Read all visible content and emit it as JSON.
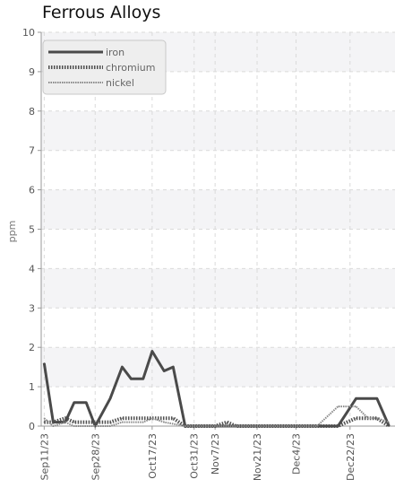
{
  "chart_data": {
    "type": "line",
    "title": "Ferrous Alloys",
    "xlabel": "",
    "ylabel": "ppm",
    "ylim": [
      0,
      10
    ],
    "yticks": [
      "0",
      "1",
      "2",
      "3",
      "4",
      "5",
      "6",
      "7",
      "8",
      "9",
      "10"
    ],
    "xlim": [
      "2023-09-10",
      "2024-01-06"
    ],
    "x_tick_labels": [
      "Sep11/23",
      "Sep28/23",
      "Oct17/23",
      "Oct31/23",
      "Nov7/23",
      "Nov21/23",
      "Dec4/23",
      "Dec22/23"
    ],
    "x_tick_dates": [
      "2023-09-11",
      "2023-09-28",
      "2023-10-17",
      "2023-10-31",
      "2023-11-07",
      "2023-11-21",
      "2023-12-04",
      "2023-12-22"
    ],
    "grid": true,
    "legend_position": "top-left",
    "series": [
      {
        "name": "iron",
        "color": "#4a4a4a",
        "style": "solid",
        "points": [
          [
            "2023-09-11",
            1.6
          ],
          [
            "2023-09-14",
            0.1
          ],
          [
            "2023-09-18",
            0.1
          ],
          [
            "2023-09-21",
            0.6
          ],
          [
            "2023-09-25",
            0.6
          ],
          [
            "2023-09-28",
            0.0
          ],
          [
            "2023-10-03",
            0.7
          ],
          [
            "2023-10-07",
            1.5
          ],
          [
            "2023-10-10",
            1.2
          ],
          [
            "2023-10-14",
            1.2
          ],
          [
            "2023-10-17",
            1.9
          ],
          [
            "2023-10-21",
            1.4
          ],
          [
            "2023-10-24",
            1.5
          ],
          [
            "2023-10-28",
            0.0
          ],
          [
            "2023-11-21",
            0.0
          ],
          [
            "2023-12-18",
            0.0
          ],
          [
            "2023-12-24",
            0.7
          ],
          [
            "2023-12-31",
            0.7
          ],
          [
            "2024-01-04",
            0.0
          ]
        ]
      },
      {
        "name": "chromium",
        "color": "#505050",
        "style": "dotted",
        "points": [
          [
            "2023-09-11",
            0.1
          ],
          [
            "2023-09-14",
            0.1
          ],
          [
            "2023-09-18",
            0.2
          ],
          [
            "2023-09-21",
            0.1
          ],
          [
            "2023-09-28",
            0.1
          ],
          [
            "2023-10-03",
            0.1
          ],
          [
            "2023-10-07",
            0.2
          ],
          [
            "2023-10-24",
            0.2
          ],
          [
            "2023-10-28",
            0.0
          ],
          [
            "2023-11-07",
            0.0
          ],
          [
            "2023-11-11",
            0.1
          ],
          [
            "2023-11-14",
            0.0
          ],
          [
            "2023-12-18",
            0.0
          ],
          [
            "2023-12-24",
            0.2
          ],
          [
            "2023-12-31",
            0.2
          ],
          [
            "2024-01-04",
            0.0
          ]
        ]
      },
      {
        "name": "nickel",
        "color": "#8a8a8a",
        "style": "dashed",
        "points": [
          [
            "2023-09-11",
            0.2
          ],
          [
            "2023-09-14",
            0.0
          ],
          [
            "2023-09-18",
            0.1
          ],
          [
            "2023-09-21",
            0.0
          ],
          [
            "2023-10-03",
            0.0
          ],
          [
            "2023-10-07",
            0.1
          ],
          [
            "2023-10-14",
            0.1
          ],
          [
            "2023-10-17",
            0.2
          ],
          [
            "2023-10-21",
            0.1
          ],
          [
            "2023-10-28",
            0.0
          ],
          [
            "2023-12-11",
            0.0
          ],
          [
            "2023-12-18",
            0.5
          ],
          [
            "2023-12-24",
            0.5
          ],
          [
            "2023-12-28",
            0.2
          ],
          [
            "2023-12-31",
            0.2
          ],
          [
            "2024-01-04",
            0.1
          ]
        ]
      }
    ]
  }
}
